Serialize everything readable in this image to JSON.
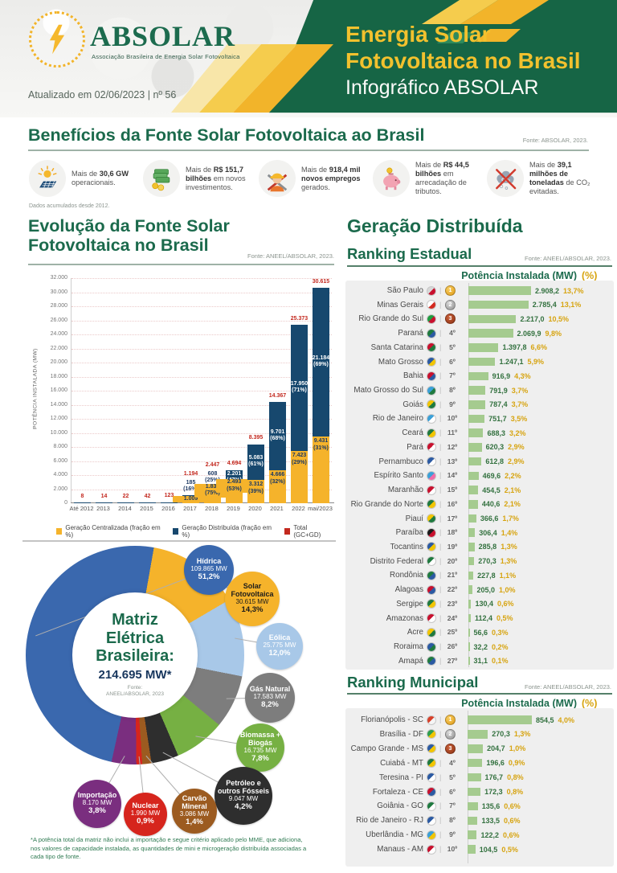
{
  "header": {
    "logo_name": "ABSOLAR",
    "logo_tagline": "Associação Brasileira de Energia Solar Fotovoltaica",
    "updated": "Atualizado em 02/06/2023 | nº 56",
    "title_line1": "Energia Solar",
    "title_line2": "Fotovoltaica no Brasil",
    "subtitle": "Infográfico ABSOLAR"
  },
  "benefits": {
    "title": "Benefícios da Fonte Solar Fotovoltaica ao Brasil",
    "source": "Fonte: ABSOLAR, 2023.",
    "footnote": "Dados acumulados desde 2012.",
    "items": [
      {
        "icon": "solar-panel-icon",
        "prefix": "Mais de ",
        "bold": "30,6 GW",
        "rest": " operacionais."
      },
      {
        "icon": "money-icon",
        "prefix": "Mais de ",
        "bold": "R$ 151,7 bilhões",
        "rest": " em novos investimentos."
      },
      {
        "icon": "construction-worker-icon",
        "prefix": "Mais de ",
        "bold": "918,4 mil novos empregos",
        "rest": " gerados."
      },
      {
        "icon": "piggy-bank-icon",
        "prefix": "Mais de ",
        "bold": "R$ 44,5 bilhões",
        "rest": " em arrecadação de tributos."
      },
      {
        "icon": "co2-avoided-icon",
        "prefix": "Mais de ",
        "bold": "39,1 milhões de toneladas",
        "rest": " de CO₂ evitadas."
      }
    ]
  },
  "evolution": {
    "title_line1": "Evolução da Fonte Solar",
    "title_line2": "Fotovoltaica no Brasil",
    "source": "Fonte: ANEEL/ABSOLAR, 2023."
  },
  "distributed": {
    "title": "Geração Distribuída",
    "estadual": {
      "subtitle": "Ranking Estadual",
      "source": "Fonte: ANEEL/ABSOLAR, 2023.",
      "col_mw": "Potência Instalada (MW)",
      "col_pct": "(%)"
    },
    "municipal": {
      "subtitle": "Ranking Municipal",
      "source": "Fonte: ANEEL/ABSOLAR, 2023.",
      "col_mw": "Potência Instalada (MW)",
      "col_pct": "(%)"
    }
  },
  "matrix": {
    "center_line1": "Matriz",
    "center_line2": "Elétrica",
    "center_line3": "Brasileira:",
    "total": "214.695 MW*",
    "source_line1": "Fonte:",
    "source_line2": "ANEEL/ABSOLAR, 2023",
    "footnote": "*A potência total da matriz não inclui a importação e segue critério aplicado pelo MME, que adiciona, nos valores de capacidade instalada, as quantidades de mini e microgeração distribuída associadas a cada tipo de fonte."
  },
  "chart_data": [
    {
      "id": "evolution",
      "type": "bar",
      "stacked": true,
      "title": "Evolução da Fonte Solar Fotovoltaica no Brasil",
      "ylabel": "POTÊNCIA INSTALADA (MW)",
      "ylim": [
        0,
        32000
      ],
      "ytick_step": 2000,
      "grid": true,
      "legend_position": "bottom",
      "categories": [
        "Até 2012",
        "2013",
        "2014",
        "2015",
        "2016",
        "2017",
        "2018",
        "2019",
        "2020",
        "2021",
        "2022",
        "mai/2023"
      ],
      "series": [
        {
          "name": "Geração Centralizada (fração em %)",
          "color": "#F5B32B",
          "values": [
            0,
            0,
            0,
            0,
            0,
            1009,
            1839,
            2493,
            3312,
            4666,
            7423,
            9431
          ],
          "labels": [
            "",
            "",
            "",
            "",
            "",
            "1.009",
            "1.839 (75%)",
            "2.493 (53%)",
            "3.312 (39%)",
            "4.666 (32%)",
            "7.423 (29%)",
            "9.431 (31%)"
          ]
        },
        {
          "name": "Geração Distribuída (fração em %)",
          "color": "#17486E",
          "values": [
            8,
            14,
            22,
            42,
            123,
            185,
            608,
            2201,
            5083,
            9701,
            17950,
            21184
          ],
          "labels": [
            "",
            "",
            "",
            "",
            "",
            "185 (16%)",
            "608 (25%)",
            "2.201 (47%)",
            "5.083 (61%)",
            "9.701 (68%)",
            "17.950 (71%)",
            "21.184 (69%)"
          ]
        },
        {
          "name": "Total (GC+GD)",
          "color": "#C3281E",
          "values": [
            8,
            14,
            22,
            42,
            123,
            1194,
            2447,
            4694,
            8395,
            14367,
            25373,
            30615
          ],
          "labels": [
            "8",
            "14",
            "22",
            "42",
            "123",
            "1.194",
            "2.447",
            "4.694",
            "8.395",
            "14.367",
            "25.373",
            "30.615"
          ]
        }
      ]
    },
    {
      "id": "matrix",
      "type": "pie",
      "title": "Matriz Elétrica Brasileira: 214.695 MW*",
      "slices": [
        {
          "name": "Hídrica",
          "mw": "109.865 MW",
          "pct": "51,2%",
          "value": 51.2,
          "color": "#3A68AE",
          "text": "light"
        },
        {
          "name": "Solar Fotovoltaica",
          "mw": "30.615 MW",
          "pct": "14,3%",
          "value": 14.3,
          "color": "#F5B32B",
          "text": "dark"
        },
        {
          "name": "Eólica",
          "mw": "25.775 MW",
          "pct": "12,0%",
          "value": 12.0,
          "color": "#A8C8E8",
          "text": "light"
        },
        {
          "name": "Gás Natural",
          "mw": "17.583 MW",
          "pct": "8,2%",
          "value": 8.2,
          "color": "#7D7D7D",
          "text": "light"
        },
        {
          "name": "Biomassa + Biogás",
          "mw": "16.735 MW",
          "pct": "7,8%",
          "value": 7.8,
          "color": "#76B043",
          "text": "light"
        },
        {
          "name": "Petróleo e outros Fósseis",
          "mw": "9.047 MW",
          "pct": "4,2%",
          "value": 4.2,
          "color": "#2E2E2E",
          "text": "light"
        },
        {
          "name": "Carvão Mineral",
          "mw": "3.086 MW",
          "pct": "1,4%",
          "value": 1.4,
          "color": "#9C5B20",
          "text": "light"
        },
        {
          "name": "Nuclear",
          "mw": "1.990 MW",
          "pct": "0,9%",
          "value": 0.9,
          "color": "#D6251D",
          "text": "light"
        },
        {
          "name": "Importação",
          "mw": "8.170 MW",
          "pct": "3,8%",
          "value": 3.8,
          "color": "#7A2E7F",
          "text": "light"
        }
      ]
    },
    {
      "id": "ranking_estadual",
      "type": "bar",
      "title": "Ranking Estadual",
      "rows": [
        {
          "name": "São Paulo",
          "rank": "1º",
          "medal": "gold",
          "value": 2908.2,
          "value_label": "2.908,2",
          "pct": "13,7%",
          "flag": [
            "#d8d8d8",
            "#c8102e"
          ]
        },
        {
          "name": "Minas Gerais",
          "rank": "2º",
          "medal": "silver",
          "value": 2785.4,
          "value_label": "2.785,4",
          "pct": "13,1%",
          "flag": [
            "#ffffff",
            "#d42a20"
          ]
        },
        {
          "name": "Rio Grande do Sul",
          "rank": "3º",
          "medal": "bronze",
          "value": 2217.0,
          "value_label": "2.217,0",
          "pct": "10,5%",
          "flag": [
            "#1f9c3f",
            "#c8102e"
          ]
        },
        {
          "name": "Paraná",
          "rank": "4º",
          "medal": null,
          "value": 2069.9,
          "value_label": "2.069,9",
          "pct": "9,8%",
          "flag": [
            "#1f7a3f",
            "#2b5aa3"
          ]
        },
        {
          "name": "Santa Catarina",
          "rank": "5º",
          "medal": null,
          "value": 1397.8,
          "value_label": "1.397,8",
          "pct": "6,6%",
          "flag": [
            "#c8102e",
            "#1f7a3f"
          ]
        },
        {
          "name": "Mato Grosso",
          "rank": "6º",
          "medal": null,
          "value": 1247.1,
          "value_label": "1.247,1",
          "pct": "5,9%",
          "flag": [
            "#2b5aa3",
            "#f2c500"
          ]
        },
        {
          "name": "Bahia",
          "rank": "7º",
          "medal": null,
          "value": 916.9,
          "value_label": "916,9",
          "pct": "4,3%",
          "flag": [
            "#c8102e",
            "#2b5aa3"
          ]
        },
        {
          "name": "Mato Grosso do Sul",
          "rank": "8º",
          "medal": null,
          "value": 791.9,
          "value_label": "791,9",
          "pct": "3,7%",
          "flag": [
            "#3aa0d8",
            "#1f7a3f"
          ]
        },
        {
          "name": "Goiás",
          "rank": "9º",
          "medal": null,
          "value": 787.4,
          "value_label": "787,4",
          "pct": "3,7%",
          "flag": [
            "#f2c500",
            "#1f7a3f"
          ]
        },
        {
          "name": "Rio de Janeiro",
          "rank": "10º",
          "medal": null,
          "value": 751.7,
          "value_label": "751,7",
          "pct": "3,5%",
          "flag": [
            "#3aa0d8",
            "#ffffff"
          ]
        },
        {
          "name": "Ceará",
          "rank": "11º",
          "medal": null,
          "value": 688.3,
          "value_label": "688,3",
          "pct": "3,2%",
          "flag": [
            "#1f7a3f",
            "#f2c500"
          ]
        },
        {
          "name": "Pará",
          "rank": "12º",
          "medal": null,
          "value": 620.3,
          "value_label": "620,3",
          "pct": "2,9%",
          "flag": [
            "#c8102e",
            "#ffffff"
          ]
        },
        {
          "name": "Pernambuco",
          "rank": "13º",
          "medal": null,
          "value": 612.8,
          "value_label": "612,8",
          "pct": "2,9%",
          "flag": [
            "#2b5aa3",
            "#ffffff"
          ]
        },
        {
          "name": "Espírito Santo",
          "rank": "14º",
          "medal": null,
          "value": 469.6,
          "value_label": "469,6",
          "pct": "2,2%",
          "flag": [
            "#3aa0d8",
            "#f06ba8"
          ]
        },
        {
          "name": "Maranhão",
          "rank": "15º",
          "medal": null,
          "value": 454.5,
          "value_label": "454,5",
          "pct": "2,1%",
          "flag": [
            "#c8102e",
            "#ffffff"
          ]
        },
        {
          "name": "Rio Grande do Norte",
          "rank": "16º",
          "medal": null,
          "value": 440.6,
          "value_label": "440,6",
          "pct": "2,1%",
          "flag": [
            "#1f7a3f",
            "#f2c500"
          ]
        },
        {
          "name": "Piauí",
          "rank": "17º",
          "medal": null,
          "value": 366.6,
          "value_label": "366,6",
          "pct": "1,7%",
          "flag": [
            "#f2c500",
            "#1f7a3f"
          ]
        },
        {
          "name": "Paraíba",
          "rank": "18º",
          "medal": null,
          "value": 306.4,
          "value_label": "306,4",
          "pct": "1,4%",
          "flag": [
            "#1a1a1a",
            "#c8102e"
          ]
        },
        {
          "name": "Tocantins",
          "rank": "19º",
          "medal": null,
          "value": 285.8,
          "value_label": "285,8",
          "pct": "1,3%",
          "flag": [
            "#2b5aa3",
            "#f2c500"
          ]
        },
        {
          "name": "Distrito Federal",
          "rank": "20º",
          "medal": null,
          "value": 270.3,
          "value_label": "270,3",
          "pct": "1,3%",
          "flag": [
            "#1f7a3f",
            "#ffffff"
          ]
        },
        {
          "name": "Rondônia",
          "rank": "21º",
          "medal": null,
          "value": 227.8,
          "value_label": "227,8",
          "pct": "1,1%",
          "flag": [
            "#1f7a3f",
            "#2b5aa3"
          ]
        },
        {
          "name": "Alagoas",
          "rank": "22º",
          "medal": null,
          "value": 205.0,
          "value_label": "205,0",
          "pct": "1,0%",
          "flag": [
            "#c8102e",
            "#2b5aa3"
          ]
        },
        {
          "name": "Sergipe",
          "rank": "23º",
          "medal": null,
          "value": 130.4,
          "value_label": "130,4",
          "pct": "0,6%",
          "flag": [
            "#1f7a3f",
            "#f2c500"
          ]
        },
        {
          "name": "Amazonas",
          "rank": "24º",
          "medal": null,
          "value": 112.4,
          "value_label": "112,4",
          "pct": "0,5%",
          "flag": [
            "#c8102e",
            "#ffffff"
          ]
        },
        {
          "name": "Acre",
          "rank": "25º",
          "medal": null,
          "value": 56.6,
          "value_label": "56,6",
          "pct": "0,3%",
          "flag": [
            "#f2c500",
            "#1f7a3f"
          ]
        },
        {
          "name": "Roraima",
          "rank": "26º",
          "medal": null,
          "value": 32.2,
          "value_label": "32,2",
          "pct": "0,2%",
          "flag": [
            "#2b5aa3",
            "#1f7a3f"
          ]
        },
        {
          "name": "Amapá",
          "rank": "27º",
          "medal": null,
          "value": 31.1,
          "value_label": "31,1",
          "pct": "0,1%",
          "flag": [
            "#1f7a3f",
            "#2b5aa3"
          ]
        }
      ]
    },
    {
      "id": "ranking_municipal",
      "type": "bar",
      "title": "Ranking Municipal",
      "rows": [
        {
          "name": "Florianópolis - SC",
          "rank": "1º",
          "medal": "gold",
          "value": 854.5,
          "value_label": "854,5",
          "pct": "4,0%",
          "flag": [
            "#d8402a",
            "#f5f5f5"
          ]
        },
        {
          "name": "Brasília - DF",
          "rank": "2º",
          "medal": "silver",
          "value": 270.3,
          "value_label": "270,3",
          "pct": "1,3%",
          "flag": [
            "#2e9e4f",
            "#f2c500"
          ]
        },
        {
          "name": "Campo Grande - MS",
          "rank": "3º",
          "medal": "bronze",
          "value": 204.7,
          "value_label": "204,7",
          "pct": "1,0%",
          "flag": [
            "#2b5aa3",
            "#f2c500"
          ]
        },
        {
          "name": "Cuiabá - MT",
          "rank": "4º",
          "medal": null,
          "value": 196.6,
          "value_label": "196,6",
          "pct": "0,9%",
          "flag": [
            "#1f7a3f",
            "#f2c500"
          ]
        },
        {
          "name": "Teresina - PI",
          "rank": "5º",
          "medal": null,
          "value": 176.7,
          "value_label": "176,7",
          "pct": "0,8%",
          "flag": [
            "#2b5aa3",
            "#ffffff"
          ]
        },
        {
          "name": "Fortaleza - CE",
          "rank": "6º",
          "medal": null,
          "value": 172.3,
          "value_label": "172,3",
          "pct": "0,8%",
          "flag": [
            "#c8102e",
            "#2b5aa3"
          ]
        },
        {
          "name": "Goiânia - GO",
          "rank": "7º",
          "medal": null,
          "value": 135.6,
          "value_label": "135,6",
          "pct": "0,6%",
          "flag": [
            "#1f7a3f",
            "#ffffff"
          ]
        },
        {
          "name": "Rio de Janeiro - RJ",
          "rank": "8º",
          "medal": null,
          "value": 133.5,
          "value_label": "133,5",
          "pct": "0,6%",
          "flag": [
            "#2b5aa3",
            "#ffffff"
          ]
        },
        {
          "name": "Uberlândia - MG",
          "rank": "9º",
          "medal": null,
          "value": 122.2,
          "value_label": "122,2",
          "pct": "0,6%",
          "flag": [
            "#3aa0d8",
            "#f2c500"
          ]
        },
        {
          "name": "Manaus - AM",
          "rank": "10º",
          "medal": null,
          "value": 104.5,
          "value_label": "104,5",
          "pct": "0,5%",
          "flag": [
            "#c8102e",
            "#ffffff"
          ]
        }
      ]
    }
  ]
}
